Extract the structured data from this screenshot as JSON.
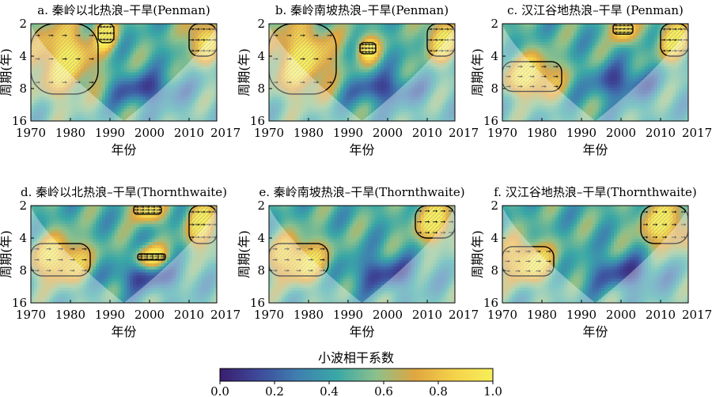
{
  "figure": {
    "colorbar": {
      "label": "小波相干系数",
      "ticks": [
        "0.0",
        "0.2",
        "0.4",
        "0.6",
        "0.8",
        "1.0"
      ],
      "range": [
        0.0,
        1.0
      ],
      "colors": [
        "#3a1d6e",
        "#3e4a9b",
        "#3f7fb0",
        "#3aa8a6",
        "#8cc08c",
        "#e0a640",
        "#f5d24a",
        "#f7ef5a"
      ]
    },
    "axis_ylabel": "周期(年)",
    "axis_xlabel": "年份",
    "arrow_color": "#1a1a1a",
    "contour_color": "#000000"
  },
  "chart_data": [
    {
      "type": "heatmap",
      "title": "a. 秦岭以北热浪–干旱(Penman)",
      "xlabel": "年份",
      "ylabel": "周期(年)",
      "xticks": [
        "1970",
        "1980",
        "1990",
        "2000",
        "2010",
        "2017"
      ],
      "yticks": [
        "2",
        "4",
        "8",
        "16"
      ],
      "xlim": [
        1970,
        2017
      ],
      "ylim": [
        2,
        16
      ],
      "ylog": true,
      "high_coherence_regions": [
        {
          "x": [
            1970,
            1987
          ],
          "period": [
            2,
            9
          ]
        },
        {
          "x": [
            1987,
            1991
          ],
          "period": [
            2,
            3
          ]
        },
        {
          "x": [
            2010,
            2017
          ],
          "period": [
            2,
            4
          ]
        }
      ],
      "low_coherence_regions": [
        {
          "x": [
            1988,
            2010
          ],
          "period": [
            6,
            11
          ]
        }
      ]
    },
    {
      "type": "heatmap",
      "title": "b. 秦岭南坡热浪–干旱(Penman)",
      "xlabel": "年份",
      "ylabel": "周期(年)",
      "xticks": [
        "1970",
        "1980",
        "1990",
        "2000",
        "2010",
        "2017"
      ],
      "yticks": [
        "2",
        "4",
        "8",
        "16"
      ],
      "xlim": [
        1970,
        2017
      ],
      "ylim": [
        2,
        16
      ],
      "ylog": true,
      "high_coherence_regions": [
        {
          "x": [
            1970,
            1987
          ],
          "period": [
            2,
            9
          ]
        },
        {
          "x": [
            1993,
            1997
          ],
          "period": [
            3,
            3.8
          ]
        },
        {
          "x": [
            2010,
            2017
          ],
          "period": [
            2,
            4
          ]
        }
      ],
      "low_coherence_regions": [
        {
          "x": [
            1988,
            2010
          ],
          "period": [
            6,
            11
          ]
        }
      ]
    },
    {
      "type": "heatmap",
      "title": "c. 汉江谷地热浪–干旱 (Penman)",
      "xlabel": "年份",
      "ylabel": "周期(年)",
      "xticks": [
        "1970",
        "1980",
        "1990",
        "2000",
        "2010",
        "2017"
      ],
      "yticks": [
        "2",
        "4",
        "8",
        "16"
      ],
      "xlim": [
        1970,
        2017
      ],
      "ylim": [
        2,
        16
      ],
      "ylog": true,
      "high_coherence_regions": [
        {
          "x": [
            1970,
            1985
          ],
          "period": [
            4.5,
            8.5
          ]
        },
        {
          "x": [
            1998,
            2003
          ],
          "period": [
            2,
            2.5
          ]
        },
        {
          "x": [
            2010,
            2017
          ],
          "period": [
            2,
            4
          ]
        }
      ],
      "low_coherence_regions": [
        {
          "x": [
            1990,
            2010
          ],
          "period": [
            5,
            10
          ]
        }
      ]
    },
    {
      "type": "heatmap",
      "title": "d. 秦岭以北热浪–干旱(Thornthwaite)",
      "xlabel": "年份",
      "ylabel": "周期(年)",
      "xticks": [
        "1970",
        "1980",
        "1990",
        "2000",
        "2010",
        "2017"
      ],
      "yticks": [
        "2",
        "4",
        "8",
        "16"
      ],
      "xlim": [
        1970,
        2017
      ],
      "ylim": [
        2,
        16
      ],
      "ylog": true,
      "high_coherence_regions": [
        {
          "x": [
            1970,
            1985
          ],
          "period": [
            4.5,
            9
          ]
        },
        {
          "x": [
            1996,
            2003
          ],
          "period": [
            2,
            2.4
          ]
        },
        {
          "x": [
            1997,
            2004
          ],
          "period": [
            5.6,
            6.4
          ]
        },
        {
          "x": [
            2010,
            2017
          ],
          "period": [
            2,
            4.5
          ]
        }
      ],
      "low_coherence_regions": [
        {
          "x": [
            1988,
            2010
          ],
          "period": [
            7,
            12
          ]
        }
      ]
    },
    {
      "type": "heatmap",
      "title": "e. 秦岭南坡热浪–干旱(Thornthwaite)",
      "xlabel": "年份",
      "ylabel": "周期(年)",
      "xticks": [
        "1970",
        "1980",
        "1990",
        "2000",
        "2010",
        "2017"
      ],
      "yticks": [
        "2",
        "4",
        "8",
        "16"
      ],
      "xlim": [
        1970,
        2017
      ],
      "ylim": [
        2,
        16
      ],
      "ylog": true,
      "high_coherence_regions": [
        {
          "x": [
            1970,
            1985
          ],
          "period": [
            4.5,
            9
          ]
        },
        {
          "x": [
            2007,
            2017
          ],
          "period": [
            2,
            4
          ]
        }
      ],
      "low_coherence_regions": [
        {
          "x": [
            1988,
            2010
          ],
          "period": [
            6,
            12
          ]
        }
      ]
    },
    {
      "type": "heatmap",
      "title": "f. 汉江谷地热浪–干旱(Thornthwaite)",
      "xlabel": "年份",
      "ylabel": "周期(年)",
      "xticks": [
        "1970",
        "1980",
        "1990",
        "2000",
        "2010",
        "2017"
      ],
      "yticks": [
        "2",
        "4",
        "8",
        "16"
      ],
      "xlim": [
        1970,
        2017
      ],
      "ylim": [
        2,
        16
      ],
      "ylog": true,
      "high_coherence_regions": [
        {
          "x": [
            1970,
            1983
          ],
          "period": [
            4.8,
            9
          ]
        },
        {
          "x": [
            2005,
            2017
          ],
          "period": [
            2,
            4.5
          ]
        }
      ],
      "low_coherence_regions": [
        {
          "x": [
            1990,
            2012
          ],
          "period": [
            6,
            12
          ]
        }
      ]
    }
  ]
}
